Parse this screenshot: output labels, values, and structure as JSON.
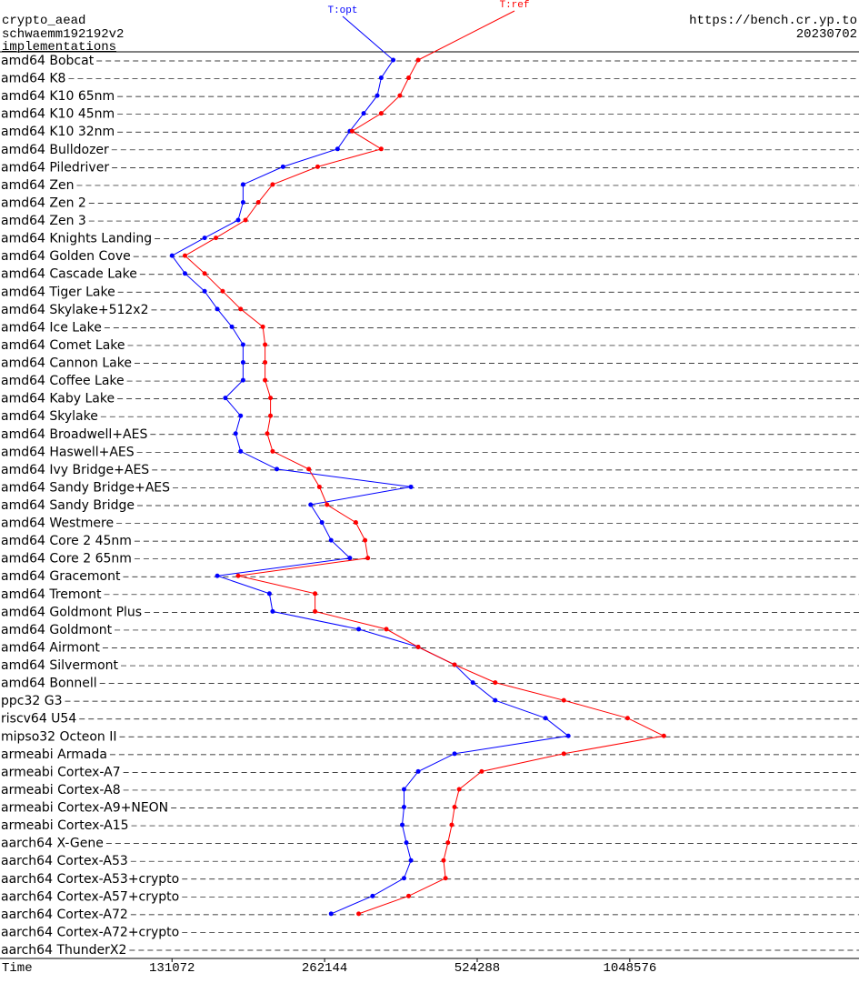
{
  "chart_data": {
    "type": "line",
    "title": "crypto_aead",
    "subtitle": "schwaemm192192v2",
    "link": "implementations",
    "source": "https://bench.cr.yp.to",
    "date": "20230702",
    "x_label": "Time",
    "xlog": true,
    "xlim": [
      60000,
      2970000
    ],
    "xticks": [
      131072,
      262144,
      524288,
      1048576
    ],
    "categories": [
      "amd64 Bobcat",
      "amd64 K8",
      "amd64 K10 65nm",
      "amd64 K10 45nm",
      "amd64 K10 32nm",
      "amd64 Bulldozer",
      "amd64 Piledriver",
      "amd64 Zen",
      "amd64 Zen 2",
      "amd64 Zen 3",
      "amd64 Knights Landing",
      "amd64 Golden Cove",
      "amd64 Cascade Lake",
      "amd64 Tiger Lake",
      "amd64 Skylake+512x2",
      "amd64 Ice Lake",
      "amd64 Comet Lake",
      "amd64 Cannon Lake",
      "amd64 Coffee Lake",
      "amd64 Kaby Lake",
      "amd64 Skylake",
      "amd64 Broadwell+AES",
      "amd64 Haswell+AES",
      "amd64 Ivy Bridge+AES",
      "amd64 Sandy Bridge+AES",
      "amd64 Sandy Bridge",
      "amd64 Westmere",
      "amd64 Core 2 45nm",
      "amd64 Core 2 65nm",
      "amd64 Gracemont",
      "amd64 Tremont",
      "amd64 Goldmont Plus",
      "amd64 Goldmont",
      "amd64 Airmont",
      "amd64 Silvermont",
      "amd64 Bonnell",
      "ppc32 G3",
      "riscv64 U54",
      "mipso32 Octeon II",
      "armeabi Armada",
      "armeabi Cortex-A7",
      "armeabi Cortex-A8",
      "armeabi Cortex-A9+NEON",
      "armeabi Cortex-A15",
      "aarch64 X-Gene",
      "aarch64 Cortex-A53",
      "aarch64 Cortex-A53+crypto",
      "aarch64 Cortex-A57+crypto",
      "aarch64 Cortex-A72",
      "aarch64 Cortex-A72+crypto",
      "aarch64 ThunderX2"
    ],
    "series": [
      {
        "name": "T:opt",
        "color": "#0000ff",
        "values": [
          358000,
          339000,
          333000,
          313000,
          294000,
          278000,
          217000,
          181000,
          181000,
          177000,
          152000,
          131072,
          139000,
          152000,
          161000,
          172000,
          181000,
          181000,
          181000,
          167000,
          179000,
          175000,
          179000,
          211000,
          388000,
          246000,
          259000,
          270000,
          294000,
          161000,
          204000,
          207000,
          306000,
          401000,
          473000,
          514000,
          569000,
          715000,
          793000,
          473000,
          401000,
          376000,
          376000,
          373000,
          380000,
          388000,
          376000,
          326000,
          270000,
          null,
          null
        ]
      },
      {
        "name": "T:ref",
        "color": "#ff0000",
        "values": [
          401000,
          384000,
          369000,
          339000,
          297000,
          339000,
          254000,
          207000,
          194000,
          183000,
          160000,
          139000,
          152000,
          165000,
          179000,
          198000,
          200000,
          200000,
          200000,
          205000,
          205000,
          202000,
          207000,
          244000,
          256000,
          265000,
          302000,
          315000,
          319000,
          177000,
          251000,
          251000,
          347000,
          401000,
          473000,
          569000,
          777000,
          1038000,
          1224000,
          777000,
          535000,
          483000,
          473000,
          467000,
          459000,
          450000,
          454000,
          384000,
          306000,
          null,
          null
        ]
      }
    ]
  }
}
